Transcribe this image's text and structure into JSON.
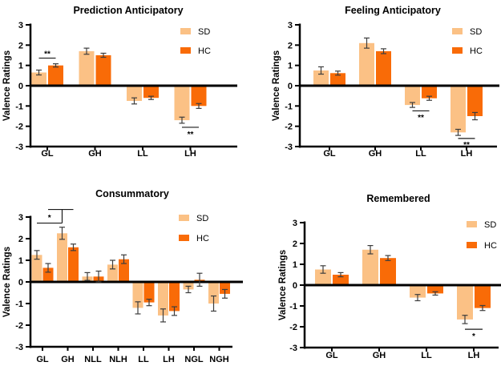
{
  "figure": {
    "background": "#ffffff"
  },
  "colors": {
    "sd": "#FBC185",
    "hc": "#F96B07",
    "axis": "#000000",
    "error_bar": "#3d3d3d",
    "sig": "#1a1a1a"
  },
  "legend": {
    "items": [
      {
        "label": "SD",
        "color_key": "sd"
      },
      {
        "label": "HC",
        "color_key": "hc"
      }
    ]
  },
  "chart_data": [
    {
      "type": "bar",
      "title": "Prediction Anticipatory",
      "ylabel": "Valence Ratings",
      "ylim": [
        -3,
        3
      ],
      "yticks": [
        3,
        2,
        1,
        0,
        -1,
        -2,
        -3
      ],
      "categories": [
        "GL",
        "GH",
        "LL",
        "LH"
      ],
      "legend_position": "top-right",
      "series": [
        {
          "name": "SD",
          "values": [
            0.65,
            1.7,
            -0.75,
            -1.7
          ],
          "errors": [
            0.12,
            0.15,
            0.15,
            0.15
          ]
        },
        {
          "name": "HC",
          "values": [
            1.0,
            1.5,
            -0.6,
            -1.0
          ],
          "errors": [
            0.08,
            0.1,
            0.08,
            0.12
          ]
        }
      ],
      "significance": [
        {
          "type": "pair",
          "stars": "**",
          "category": "GL",
          "line_y": 1.36,
          "stars_y": 1.58
        },
        {
          "type": "pair",
          "stars": "**",
          "category": "LH",
          "line_y": -2.05,
          "stars_y": -2.38
        }
      ]
    },
    {
      "type": "bar",
      "title": "Feeling Anticipatory",
      "ylabel": "Valence Ratings",
      "ylim": [
        -3,
        3
      ],
      "yticks": [
        3,
        2,
        1,
        0,
        -1,
        -2,
        -3
      ],
      "categories": [
        "GL",
        "GH",
        "LL",
        "LH"
      ],
      "legend_position": "top-right",
      "series": [
        {
          "name": "SD",
          "values": [
            0.75,
            2.1,
            -0.95,
            -2.3
          ],
          "errors": [
            0.18,
            0.25,
            0.12,
            0.15
          ]
        },
        {
          "name": "HC",
          "values": [
            0.62,
            1.7,
            -0.62,
            -1.5
          ],
          "errors": [
            0.1,
            0.12,
            0.1,
            0.18
          ]
        }
      ],
      "significance": [
        {
          "type": "pair",
          "stars": "**",
          "category": "LL",
          "line_y": -1.24,
          "stars_y": -1.55
        },
        {
          "type": "pair",
          "stars": "**",
          "category": "LH",
          "line_y": -2.6,
          "stars_y": -2.9
        }
      ]
    },
    {
      "type": "bar",
      "title": "Consummatory",
      "ylabel": "Valence Ratings",
      "ylim": [
        -3,
        3
      ],
      "yticks": [
        3,
        2,
        1,
        0,
        -1,
        -2,
        -3
      ],
      "categories": [
        "GL",
        "GH",
        "NLL",
        "NLH",
        "LL",
        "LH",
        "NGL",
        "NGH"
      ],
      "legend_position": "top-right",
      "series": [
        {
          "name": "SD",
          "values": [
            1.25,
            2.25,
            0.25,
            0.8,
            -1.2,
            -1.55,
            -0.35,
            -1.0
          ],
          "errors": [
            0.2,
            0.28,
            0.18,
            0.2,
            0.28,
            0.3,
            0.15,
            0.35
          ]
        },
        {
          "name": "HC",
          "values": [
            0.65,
            1.6,
            0.25,
            1.05,
            -0.95,
            -1.35,
            0.1,
            -0.55
          ],
          "errors": [
            0.2,
            0.15,
            0.25,
            0.2,
            0.15,
            0.2,
            0.3,
            0.2
          ]
        }
      ],
      "significance": [
        {
          "type": "bracket",
          "stars": "*",
          "category_from": "GL",
          "category_to": "GH",
          "line_y_low": 2.72,
          "line_y_high": 3.35,
          "stars_y": 2.98
        }
      ]
    },
    {
      "type": "bar",
      "title": "Remembered",
      "ylabel": "Valence Ratings",
      "ylim": [
        -3,
        3
      ],
      "yticks": [
        3,
        2,
        1,
        0,
        -1,
        -2,
        -3
      ],
      "categories": [
        "GL",
        "GH",
        "LL",
        "LH"
      ],
      "legend_position": "top-right",
      "series": [
        {
          "name": "SD",
          "values": [
            0.75,
            1.7,
            -0.6,
            -1.65
          ],
          "errors": [
            0.18,
            0.2,
            0.15,
            0.2
          ]
        },
        {
          "name": "HC",
          "values": [
            0.5,
            1.3,
            -0.4,
            -1.1
          ],
          "errors": [
            0.1,
            0.12,
            0.08,
            0.12
          ]
        }
      ],
      "significance": [
        {
          "type": "pair",
          "stars": "*",
          "category": "LH",
          "line_y": -2.12,
          "stars_y": -2.45
        }
      ]
    }
  ]
}
